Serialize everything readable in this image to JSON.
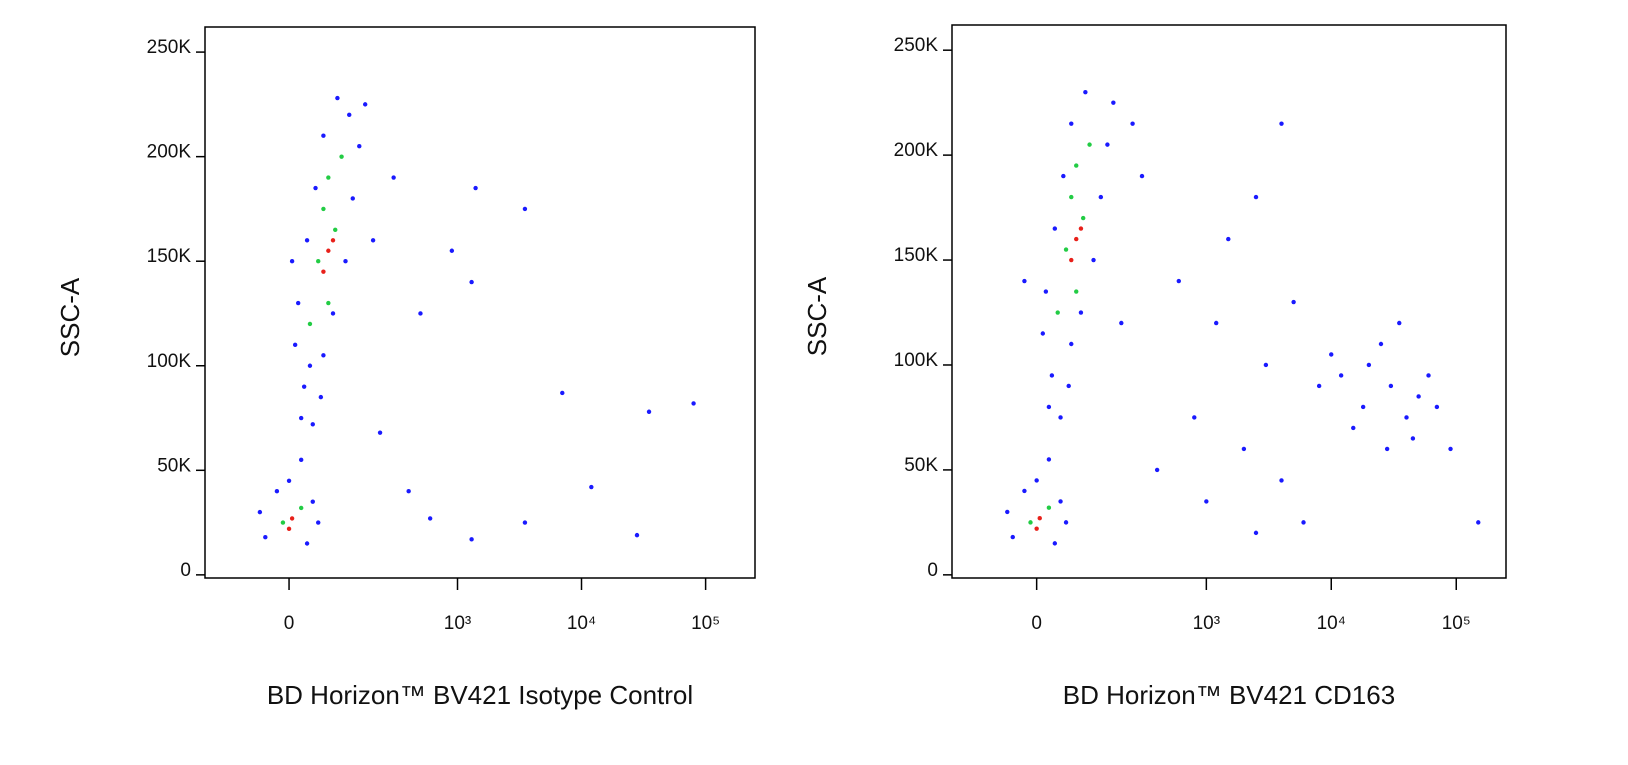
{
  "chart_data": [
    {
      "type": "scatter",
      "xlabel": "BD Horizon™ BV421 Isotype Control",
      "ylabel": "SSC-A",
      "xlim": [
        -200,
        250000
      ],
      "ylim": [
        -1500,
        262000
      ],
      "xticks": [
        0,
        {
          "value": 1000,
          "label": "10³"
        },
        {
          "value": 10000,
          "label": "10⁴"
        },
        {
          "value": 100000,
          "label": "10⁵"
        }
      ],
      "yticks": [
        0,
        {
          "value": 50000,
          "label": "50K"
        },
        {
          "value": 100000,
          "label": "100K"
        },
        {
          "value": 150000,
          "label": "150K"
        },
        {
          "value": 200000,
          "label": "200K"
        },
        {
          "value": 250000,
          "label": "250K"
        }
      ],
      "series": [
        {
          "color": "#1a1aff",
          "x": [
            20,
            40,
            25,
            55,
            10,
            60,
            15,
            80,
            30,
            110,
            45,
            130,
            60,
            150,
            90,
            170,
            5,
            200,
            120,
            35,
            -40,
            30,
            -50,
            40,
            0,
            -20,
            50,
            20,
            300,
            1400,
            3500,
            900,
            1300,
            7000,
            35000,
            80000,
            12000,
            1300,
            3500,
            28000,
            400,
            600,
            230,
            500
          ],
          "values": [
            75000,
            72000,
            90000,
            85000,
            110000,
            105000,
            130000,
            125000,
            160000,
            150000,
            185000,
            180000,
            210000,
            205000,
            228000,
            225000,
            150000,
            160000,
            220000,
            100000,
            18000,
            15000,
            30000,
            35000,
            45000,
            40000,
            25000,
            55000,
            190000,
            185000,
            175000,
            155000,
            140000,
            87000,
            78000,
            82000,
            42000,
            17000,
            25000,
            19000,
            40000,
            27000,
            68000,
            125000
          ]
        },
        {
          "color": "#22cc44",
          "x": [
            35,
            70,
            50,
            85,
            70,
            100,
            60,
            -10,
            20
          ],
          "values": [
            120000,
            130000,
            150000,
            165000,
            190000,
            200000,
            175000,
            25000,
            32000
          ]
        },
        {
          "color": "#e8201a",
          "x": [
            60,
            80,
            70,
            0,
            5
          ],
          "values": [
            145000,
            160000,
            155000,
            22000,
            27000
          ]
        }
      ]
    },
    {
      "type": "scatter",
      "xlabel": "BD Horizon™ BV421 CD163",
      "ylabel": "SSC-A",
      "xlim": [
        -200,
        250000
      ],
      "ylim": [
        -1500,
        262000
      ],
      "xticks": [
        0,
        {
          "value": 1000,
          "label": "10³"
        },
        {
          "value": 10000,
          "label": "10⁴"
        },
        {
          "value": 100000,
          "label": "10⁵"
        }
      ],
      "yticks": [
        0,
        {
          "value": 50000,
          "label": "50K"
        },
        {
          "value": 100000,
          "label": "100K"
        },
        {
          "value": 150000,
          "label": "150K"
        },
        {
          "value": 200000,
          "label": "200K"
        },
        {
          "value": 250000,
          "label": "250K"
        }
      ],
      "series": [
        {
          "color": "#1a1aff",
          "x": [
            20,
            40,
            25,
            55,
            10,
            60,
            15,
            80,
            30,
            110,
            45,
            130,
            60,
            150,
            90,
            170,
            250,
            300,
            200,
            -20,
            -40,
            30,
            -50,
            40,
            0,
            -20,
            50,
            20,
            12000,
            18000,
            25000,
            30000,
            40000,
            20000,
            50000,
            60000,
            15000,
            35000,
            70000,
            10000,
            45000,
            8000,
            28000,
            1500,
            2500,
            4000,
            600,
            1200,
            3000,
            5000,
            800,
            2000,
            4000,
            1000,
            6000,
            400,
            150000,
            90000,
            2500
          ],
          "values": [
            80000,
            75000,
            95000,
            90000,
            115000,
            110000,
            135000,
            125000,
            165000,
            150000,
            190000,
            180000,
            215000,
            205000,
            230000,
            225000,
            215000,
            190000,
            120000,
            140000,
            18000,
            15000,
            30000,
            35000,
            45000,
            40000,
            25000,
            55000,
            95000,
            80000,
            110000,
            90000,
            75000,
            100000,
            85000,
            95000,
            70000,
            120000,
            80000,
            105000,
            65000,
            90000,
            60000,
            160000,
            180000,
            215000,
            140000,
            120000,
            100000,
            130000,
            75000,
            60000,
            45000,
            35000,
            25000,
            50000,
            25000,
            60000,
            20000
          ]
        },
        {
          "color": "#22cc44",
          "x": [
            35,
            70,
            50,
            85,
            70,
            100,
            60,
            -10,
            20
          ],
          "values": [
            125000,
            135000,
            155000,
            170000,
            195000,
            205000,
            180000,
            25000,
            32000
          ]
        },
        {
          "color": "#e8201a",
          "x": [
            60,
            80,
            70,
            0,
            5
          ],
          "values": [
            150000,
            165000,
            160000,
            22000,
            27000
          ]
        }
      ]
    }
  ]
}
